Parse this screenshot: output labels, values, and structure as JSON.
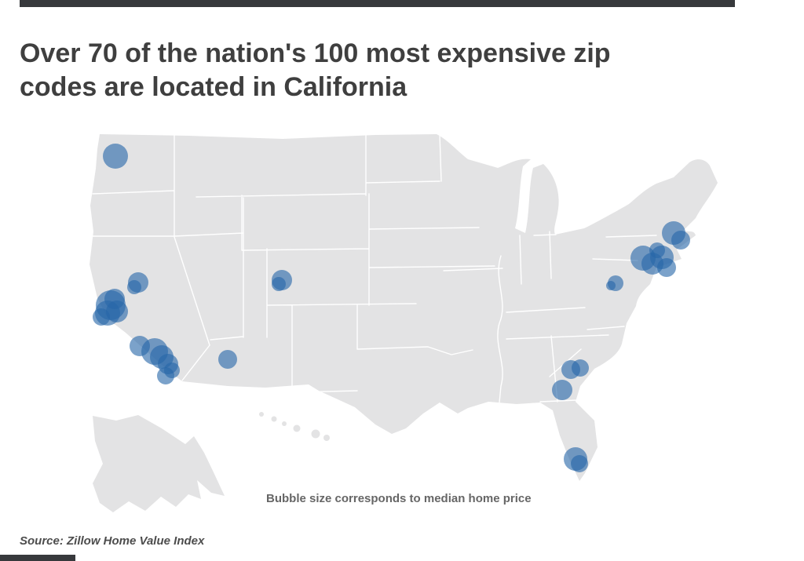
{
  "header": {
    "title": "Over 70 of the nation's 100 most expensive zip codes are located in California",
    "title_lines": [
      "Over 70 of the nation's 100 most expensive zip",
      "codes are located in California"
    ]
  },
  "map_note": "Bubble size corresponds to median home price",
  "footer": {
    "source": "Source: Zillow Home Value Index"
  },
  "colors": {
    "land": "#e3e3e4",
    "state_border": "#ffffff",
    "bubble": "#2767a8",
    "title_text": "#3f3f3f",
    "note_text": "#666666",
    "source_text": "#4d4d4d",
    "edge_bar": "#37393c"
  },
  "chart_data": {
    "type": "bubble-map",
    "basemap": "united-states",
    "title": "Over 70 of the nation's 100 most expensive zip codes are located in California",
    "note": "Bubble size corresponds to median home price",
    "source": "Source: Zillow Home Value Index",
    "size_encoding": "median home price",
    "bubble_color": "#2767a8",
    "bubble_opacity": 0.61,
    "clusters": [
      {
        "name": "puget-sound",
        "bubbles": [
          [
            147,
            199,
            16
          ]
        ]
      },
      {
        "name": "lake-tahoe",
        "bubbles": [
          [
            176,
            360,
            13
          ],
          [
            171,
            366,
            9
          ]
        ]
      },
      {
        "name": "san-francisco-bay-area",
        "bubbles": [
          [
            141,
            389,
            19
          ],
          [
            137,
            399,
            16
          ],
          [
            149,
            397,
            14
          ],
          [
            129,
            404,
            11
          ],
          [
            146,
            381,
            13
          ]
        ]
      },
      {
        "name": "los-angeles-area",
        "bubbles": [
          [
            178,
            441,
            13
          ],
          [
            197,
            448,
            17
          ],
          [
            206,
            455,
            15
          ],
          [
            214,
            464,
            13
          ],
          [
            219,
            472,
            10
          ],
          [
            211,
            479,
            11
          ]
        ]
      },
      {
        "name": "arizona",
        "bubbles": [
          [
            290,
            458,
            12
          ]
        ]
      },
      {
        "name": "colorado-rockies",
        "bubbles": [
          [
            359,
            357,
            13
          ],
          [
            355,
            362,
            9
          ]
        ]
      },
      {
        "name": "washington-dc-area",
        "bubbles": [
          [
            784,
            361,
            10
          ],
          [
            778,
            364,
            6
          ]
        ]
      },
      {
        "name": "new-york-city-area",
        "bubbles": [
          [
            819,
            329,
            16
          ],
          [
            831,
            336,
            14
          ],
          [
            843,
            328,
            15
          ],
          [
            849,
            341,
            12
          ],
          [
            837,
            319,
            10
          ]
        ]
      },
      {
        "name": "boston-area",
        "bubbles": [
          [
            858,
            297,
            15
          ],
          [
            867,
            306,
            12
          ]
        ]
      },
      {
        "name": "south-carolina-coast",
        "bubbles": [
          [
            727,
            471,
            12
          ],
          [
            739,
            469,
            11
          ]
        ]
      },
      {
        "name": "georgia-coast",
        "bubbles": [
          [
            716,
            497,
            13
          ]
        ]
      },
      {
        "name": "south-florida",
        "bubbles": [
          [
            733,
            585,
            15
          ],
          [
            738,
            591,
            11
          ]
        ]
      }
    ]
  }
}
